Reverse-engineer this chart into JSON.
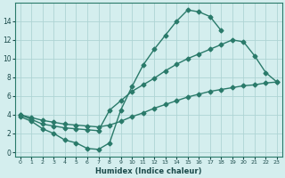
{
  "bg_color": "#d4eeee",
  "grid_color": "#aed4d4",
  "line_color": "#2a7a6a",
  "line_width": 1.0,
  "marker": "D",
  "marker_size": 2.5,
  "xlabel": "Humidex (Indice chaleur)",
  "xlim": [
    -0.5,
    23.5
  ],
  "ylim": [
    -0.5,
    16
  ],
  "xticks": [
    0,
    1,
    2,
    3,
    4,
    5,
    6,
    7,
    8,
    9,
    10,
    11,
    12,
    13,
    14,
    15,
    16,
    17,
    18,
    19,
    20,
    21,
    22,
    23
  ],
  "yticks": [
    0,
    2,
    4,
    6,
    8,
    10,
    12,
    14
  ],
  "curve1_x": [
    0,
    1,
    2,
    3,
    4,
    5,
    6,
    7,
    8,
    9,
    10,
    11,
    12,
    13,
    14,
    15,
    16,
    17,
    18
  ],
  "curve1_y": [
    3.8,
    3.3,
    2.5,
    2.0,
    1.3,
    1.0,
    0.4,
    0.3,
    1.0,
    4.5,
    7.0,
    9.3,
    11.0,
    12.5,
    14.0,
    15.2,
    15.0,
    14.5,
    13.0
  ],
  "curve2_x": [
    0,
    1,
    2,
    3,
    4,
    5,
    6,
    7,
    8,
    9,
    10,
    11,
    12,
    13,
    14,
    15,
    16,
    17,
    18,
    19,
    20,
    21,
    22,
    23
  ],
  "curve2_y": [
    4.0,
    3.5,
    3.0,
    2.8,
    2.6,
    2.5,
    2.4,
    2.3,
    4.5,
    5.5,
    6.5,
    7.2,
    7.9,
    8.7,
    9.4,
    10.0,
    10.5,
    11.0,
    11.5,
    12.0,
    11.8,
    10.3,
    8.5,
    7.5
  ],
  "curve3_x": [
    0,
    1,
    2,
    3,
    4,
    5,
    6,
    7,
    8,
    9,
    10,
    11,
    12,
    13,
    14,
    15,
    16,
    17,
    18,
    19,
    20,
    21,
    22,
    23
  ],
  "curve3_y": [
    4.0,
    3.7,
    3.4,
    3.2,
    3.0,
    2.9,
    2.8,
    2.7,
    2.9,
    3.3,
    3.8,
    4.2,
    4.7,
    5.1,
    5.5,
    5.9,
    6.2,
    6.5,
    6.7,
    6.9,
    7.1,
    7.2,
    7.4,
    7.5
  ]
}
